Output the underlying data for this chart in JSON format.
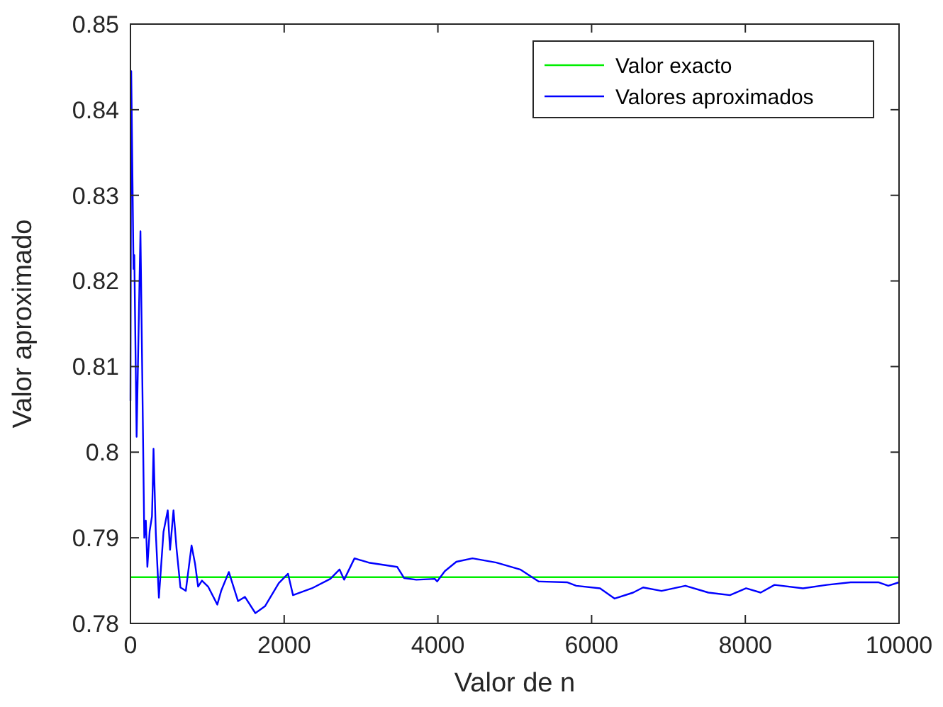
{
  "chart_data": {
    "type": "line",
    "xlabel": "Valor de n",
    "ylabel": "Valor aproximado",
    "xlim": [
      0,
      10000
    ],
    "xticks": [
      0,
      2000,
      4000,
      6000,
      8000,
      10000
    ],
    "ylim": [
      0.78,
      0.85
    ],
    "yticks": [
      0.78,
      0.79,
      0.8,
      0.81,
      0.82,
      0.83,
      0.84,
      0.85
    ],
    "grid": false,
    "legend": "top right",
    "marker": "none",
    "line_style": "solid",
    "series": [
      {
        "name": "Valor exacto",
        "color": "#00ee00",
        "x": [
          0,
          10000
        ],
        "values": [
          0.7854,
          0.7854
        ]
      },
      {
        "name": "Valores aproximados",
        "color": "#0000ff",
        "x": [
          0,
          10,
          40,
          50,
          80,
          130,
          180,
          200,
          220,
          250,
          280,
          290,
          300,
          330,
          370,
          430,
          485,
          515,
          560,
          600,
          650,
          720,
          795,
          840,
          880,
          930,
          1010,
          1130,
          1180,
          1280,
          1400,
          1490,
          1625,
          1750,
          1930,
          2050,
          2115,
          2360,
          2600,
          2720,
          2780,
          2915,
          3100,
          3470,
          3560,
          3720,
          3960,
          3990,
          4090,
          4240,
          4450,
          4760,
          5070,
          5310,
          5680,
          5800,
          6110,
          6300,
          6540,
          6670,
          6910,
          7220,
          7520,
          7800,
          8010,
          8200,
          8380,
          8750,
          9060,
          9370,
          9730,
          9860,
          10000
        ],
        "values": [
          0.806,
          0.8445,
          0.8214,
          0.823,
          0.8018,
          0.8258,
          0.79,
          0.792,
          0.7866,
          0.7908,
          0.7925,
          0.7961,
          0.8004,
          0.7905,
          0.783,
          0.7907,
          0.7932,
          0.7886,
          0.7932,
          0.7887,
          0.7842,
          0.7838,
          0.7891,
          0.787,
          0.7843,
          0.785,
          0.7843,
          0.7822,
          0.7838,
          0.786,
          0.7826,
          0.7831,
          0.7812,
          0.782,
          0.7847,
          0.7858,
          0.7833,
          0.7841,
          0.7852,
          0.7863,
          0.7851,
          0.7876,
          0.7871,
          0.7866,
          0.7853,
          0.7851,
          0.7852,
          0.7849,
          0.7861,
          0.7872,
          0.7876,
          0.7871,
          0.7863,
          0.7849,
          0.7848,
          0.7844,
          0.7841,
          0.7829,
          0.7836,
          0.7842,
          0.7838,
          0.7844,
          0.7836,
          0.7833,
          0.7841,
          0.7836,
          0.7845,
          0.7841,
          0.7845,
          0.7848,
          0.7848,
          0.7844,
          0.7848
        ]
      }
    ]
  }
}
